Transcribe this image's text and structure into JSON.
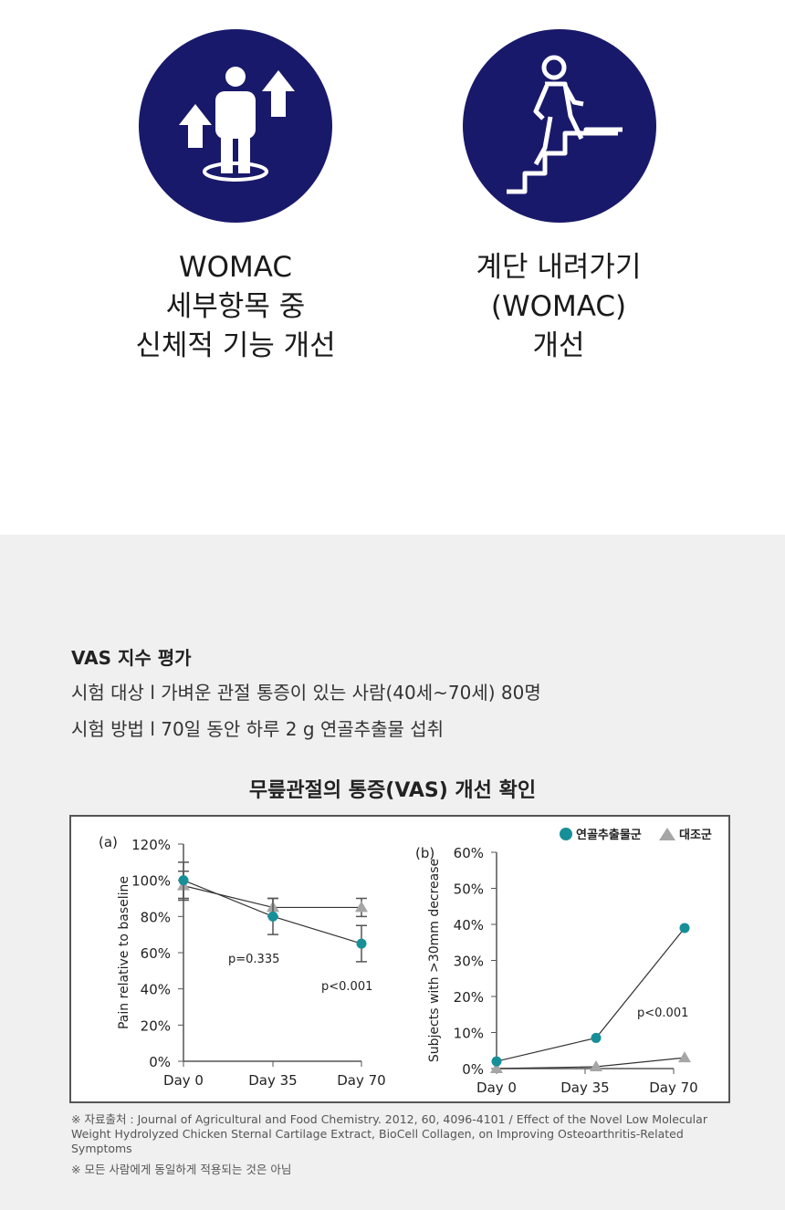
{
  "features": [
    {
      "icon": "person-up-arrows-icon",
      "lines": [
        "WOMAC",
        "세부항목 중",
        "신체적 기능 개선"
      ]
    },
    {
      "icon": "person-descending-stairs-icon",
      "lines": [
        "계단 내려가기",
        "(WOMAC)",
        "개선"
      ]
    }
  ],
  "vas": {
    "title": "VAS 지수 평가",
    "subject": "시험 대상 l 가벼운 관절 통증이 있는 사람(40세~70세) 80명",
    "method": "시험 방법 l 70일 동안 하루 2 g 연골추출물 섭취"
  },
  "chart_title": "무릎관절의 통증(VAS) 개선 확인",
  "colors": {
    "brand": "#19196b",
    "extract": "#168f99",
    "control": "#a6a6a6"
  },
  "chart_data": [
    {
      "type": "line",
      "panel": "(a)",
      "ylabel": "Pain relative to baseline",
      "categories": [
        "Day 0",
        "Day 35",
        "Day 70"
      ],
      "ylim": [
        0,
        120
      ],
      "yticks": [
        "0%",
        "20%",
        "40%",
        "60%",
        "80%",
        "100%",
        "120%"
      ],
      "series": [
        {
          "name": "연골추출물군",
          "marker": "circle",
          "values": [
            100,
            80,
            65
          ],
          "err": [
            10,
            10,
            10
          ]
        },
        {
          "name": "대조군",
          "marker": "triangle",
          "values": [
            97,
            85,
            85
          ],
          "err": [
            8,
            5,
            5
          ]
        }
      ],
      "annotations": [
        "p=0.335",
        "p<0.001"
      ]
    },
    {
      "type": "line",
      "panel": "(b)",
      "ylabel": "Subjects with >30mm decrease",
      "categories": [
        "Day 0",
        "Day 35",
        "Day 70"
      ],
      "ylim": [
        0,
        60
      ],
      "yticks": [
        "0%",
        "10%",
        "20%",
        "30%",
        "40%",
        "50%",
        "60%"
      ],
      "series": [
        {
          "name": "연골추출물군",
          "marker": "circle",
          "values": [
            2,
            8.5,
            39
          ]
        },
        {
          "name": "대조군",
          "marker": "triangle",
          "values": [
            0,
            0.5,
            3
          ]
        }
      ],
      "annotations": [
        "p<0.001"
      ],
      "legend": "top-right"
    }
  ],
  "notes": [
    "※ 자료출처 : Journal of Agricultural and Food Chemistry. 2012, 60, 4096-4101 / Effect of the Novel Low Molecular Weight Hydrolyzed Chicken Sternal Cartilage Extract, BioCell Collagen, on Improving Osteoarthritis-Related Symptoms",
    "※ 모든 사람에게 동일하게 적용되는 것은 아님"
  ]
}
